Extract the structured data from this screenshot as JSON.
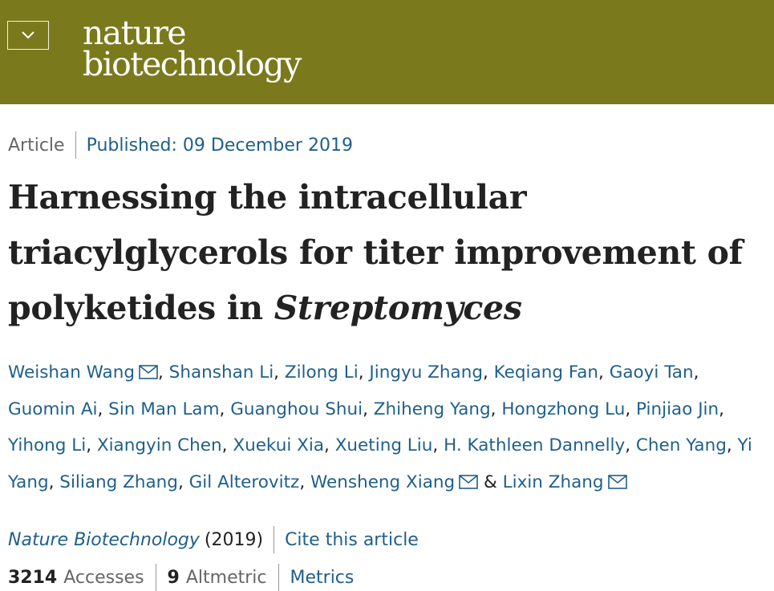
{
  "header": {
    "logo_line1": "nature",
    "logo_line2": "biotechnology",
    "menu_icon": "chevron-down-icon",
    "brand_color": "#7a7a1d"
  },
  "article": {
    "type": "Article",
    "published": "Published: 09 December 2019",
    "title_part1": "Harnessing the intracellular triacylglycerols for titer improvement of polyketides in ",
    "title_italic": "Streptomyces"
  },
  "authors": [
    {
      "name": "Weishan Wang",
      "mail": true,
      "sep": ", "
    },
    {
      "name": "Shanshan Li",
      "mail": false,
      "sep": ", "
    },
    {
      "name": "Zilong Li",
      "mail": false,
      "sep": ", "
    },
    {
      "name": "Jingyu Zhang",
      "mail": false,
      "sep": ", "
    },
    {
      "name": "Keqiang Fan",
      "mail": false,
      "sep": ", "
    },
    {
      "name": "Gaoyi Tan",
      "mail": false,
      "sep": ", "
    },
    {
      "name": "Guomin Ai",
      "mail": false,
      "sep": ", "
    },
    {
      "name": "Sin Man Lam",
      "mail": false,
      "sep": ", "
    },
    {
      "name": "Guanghou Shui",
      "mail": false,
      "sep": ", "
    },
    {
      "name": "Zhiheng Yang",
      "mail": false,
      "sep": ", "
    },
    {
      "name": "Hongzhong Lu",
      "mail": false,
      "sep": ", "
    },
    {
      "name": "Pinjiao Jin",
      "mail": false,
      "sep": ", "
    },
    {
      "name": "Yihong Li",
      "mail": false,
      "sep": ", "
    },
    {
      "name": "Xiangyin Chen",
      "mail": false,
      "sep": ", "
    },
    {
      "name": "Xuekui Xia",
      "mail": false,
      "sep": ", "
    },
    {
      "name": "Xueting Liu",
      "mail": false,
      "sep": ", "
    },
    {
      "name": "H. Kathleen Dannelly",
      "mail": false,
      "sep": ", "
    },
    {
      "name": "Chen Yang",
      "mail": false,
      "sep": ", "
    },
    {
      "name": "Yi Yang",
      "mail": false,
      "sep": ", "
    },
    {
      "name": "Siliang Zhang",
      "mail": false,
      "sep": ", "
    },
    {
      "name": "Gil Alterovitz",
      "mail": false,
      "sep": ", "
    },
    {
      "name": "Wensheng Xiang",
      "mail": true,
      "sep": " & "
    },
    {
      "name": "Lixin Zhang",
      "mail": true,
      "sep": ""
    }
  ],
  "journal": {
    "name": "Nature Biotechnology",
    "year": "(2019)",
    "cite": "Cite this article"
  },
  "metrics": {
    "accesses_count": "3214",
    "accesses_label": "Accesses",
    "altmetric_count": "9",
    "altmetric_label": "Altmetric",
    "metrics_link": "Metrics"
  },
  "colors": {
    "link": "#1f5f8b",
    "text": "#222222",
    "muted": "#666666"
  }
}
